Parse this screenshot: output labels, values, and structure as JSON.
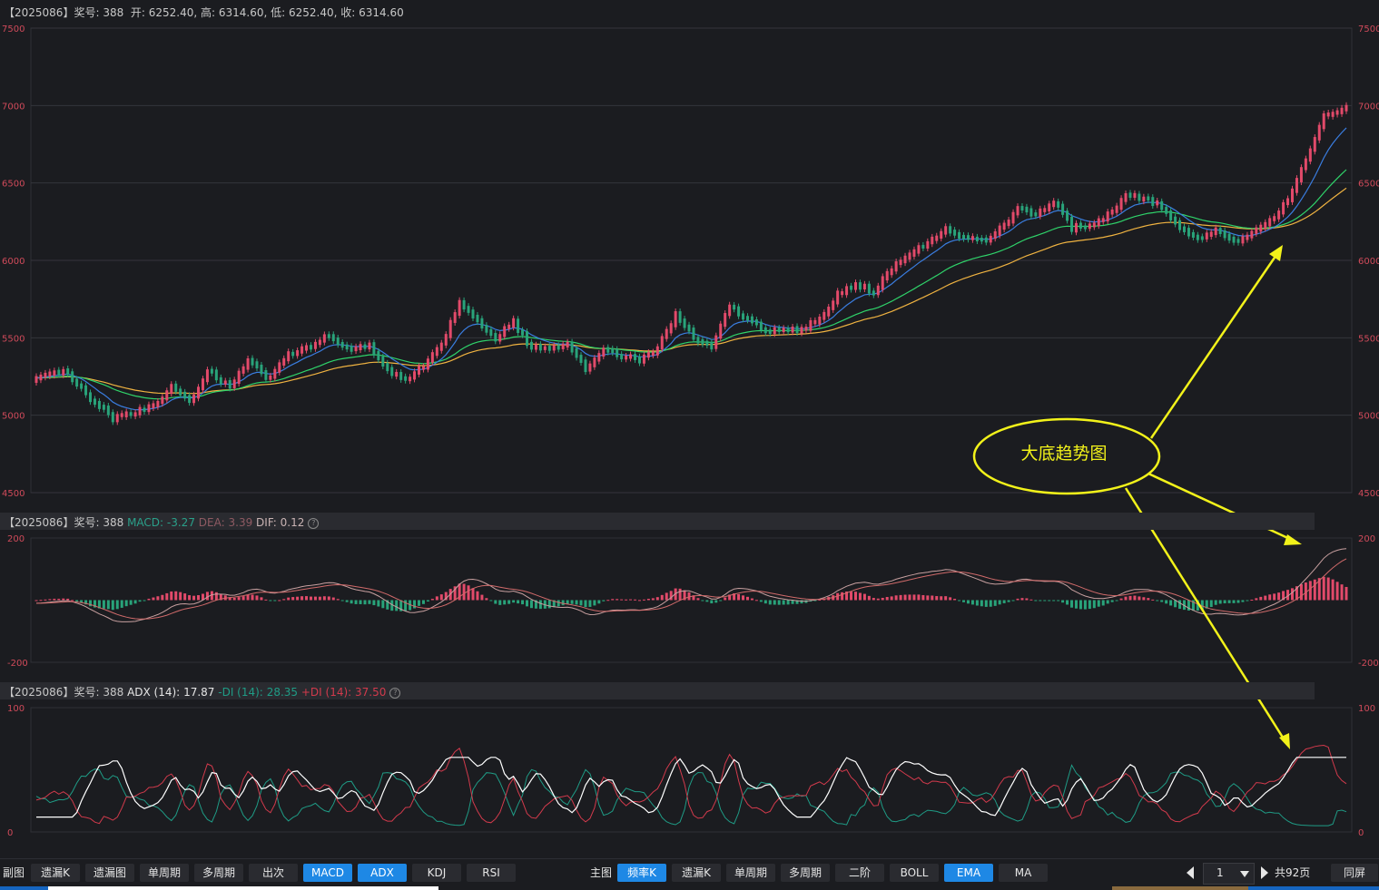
{
  "header_main": {
    "period": "【2025086】",
    "prize_label": "奖号:",
    "prize": "388",
    "open": "开: 6252.40,",
    "high": "高: 6314.60,",
    "low": "低: 6252.40,",
    "close": "收: 6314.60"
  },
  "header_macd": {
    "period": "【2025086】",
    "prize_label": "奖号:",
    "prize": "388",
    "macd_label": "MACD:",
    "macd": "-3.27",
    "dea_label": "DEA:",
    "dea": "3.39",
    "dif_label": "DIF:",
    "dif": "0.12"
  },
  "header_adx": {
    "period": "【2025086】",
    "prize_label": "奖号:",
    "prize": "388",
    "adx_label": "ADX (14):",
    "adx": "17.87",
    "mdi_label": "-DI (14):",
    "mdi": "28.35",
    "pdi_label": "+DI (14):",
    "pdi": "37.50"
  },
  "annotation": {
    "text": "大底趋势图"
  },
  "chart_data": [
    {
      "type": "candlestick",
      "ylim": [
        4500,
        7500
      ],
      "yticks": [
        "7500",
        "7000",
        "6500",
        "6000",
        "5500",
        "5000",
        "4500"
      ],
      "grid": true,
      "candles_count": 248,
      "trend_close": [
        [
          0,
          5230
        ],
        [
          6,
          5290
        ],
        [
          12,
          5110
        ],
        [
          17,
          4980
        ],
        [
          21,
          5010
        ],
        [
          26,
          5060
        ],
        [
          30,
          5180
        ],
        [
          34,
          5080
        ],
        [
          38,
          5290
        ],
        [
          43,
          5180
        ],
        [
          47,
          5350
        ],
        [
          52,
          5230
        ],
        [
          56,
          5400
        ],
        [
          61,
          5440
        ],
        [
          65,
          5520
        ],
        [
          70,
          5420
        ],
        [
          74,
          5450
        ],
        [
          78,
          5300
        ],
        [
          82,
          5220
        ],
        [
          86,
          5320
        ],
        [
          90,
          5460
        ],
        [
          94,
          5720
        ],
        [
          98,
          5610
        ],
        [
          102,
          5500
        ],
        [
          106,
          5600
        ],
        [
          110,
          5430
        ],
        [
          114,
          5430
        ],
        [
          118,
          5470
        ],
        [
          122,
          5300
        ],
        [
          126,
          5430
        ],
        [
          130,
          5380
        ],
        [
          134,
          5360
        ],
        [
          138,
          5430
        ],
        [
          142,
          5650
        ],
        [
          146,
          5500
        ],
        [
          150,
          5450
        ],
        [
          154,
          5700
        ],
        [
          158,
          5620
        ],
        [
          162,
          5550
        ],
        [
          166,
          5540
        ],
        [
          170,
          5560
        ],
        [
          174,
          5620
        ],
        [
          178,
          5780
        ],
        [
          182,
          5850
        ],
        [
          186,
          5800
        ],
        [
          190,
          5950
        ],
        [
          194,
          6050
        ],
        [
          198,
          6110
        ],
        [
          202,
          6200
        ],
        [
          206,
          6150
        ],
        [
          210,
          6120
        ],
        [
          214,
          6200
        ],
        [
          218,
          6330
        ],
        [
          222,
          6300
        ],
        [
          226,
          6380
        ],
        [
          230,
          6210
        ],
        [
          234,
          6230
        ],
        [
          238,
          6290
        ],
        [
          242,
          6420
        ],
        [
          246,
          6400
        ],
        [
          250,
          6350
        ],
        [
          254,
          6200
        ],
        [
          258,
          6130
        ],
        [
          262,
          6200
        ],
        [
          266,
          6120
        ],
        [
          270,
          6180
        ],
        [
          274,
          6250
        ],
        [
          278,
          6400
        ],
        [
          282,
          6640
        ],
        [
          286,
          6940
        ],
        [
          289,
          6960
        ],
        [
          291,
          7000
        ]
      ],
      "ema_fast_color": "#3a7de0",
      "ema_mid_color": "#2fd36a",
      "ema_slow_color": "#f0b341",
      "up_color": "#e24a6a",
      "down_color": "#29a37a"
    },
    {
      "type": "macd",
      "ylim": [
        -200,
        200
      ],
      "yticks": [
        "200",
        "-200"
      ],
      "dif_color": "#c8a0a0",
      "dea_color": "#d06a6a"
    },
    {
      "type": "adx",
      "ylim": [
        0,
        100
      ],
      "yticks": [
        "100",
        "0"
      ],
      "adx_color": "#ffffff",
      "mdi_color": "#1f9c86",
      "pdi_color": "#d23a4c"
    }
  ],
  "toolbar": {
    "sub_label": "副图",
    "sub_buttons": [
      "遗漏K",
      "遗漏图",
      "单周期",
      "多周期",
      "出次",
      "MACD",
      "ADX",
      "KDJ",
      "RSI"
    ],
    "sub_active": [
      false,
      false,
      false,
      false,
      false,
      true,
      true,
      false,
      false
    ],
    "main_label": "主图",
    "main_buttons": [
      "频率K",
      "遗漏K",
      "单周期",
      "多周期",
      "二阶",
      "BOLL",
      "EMA",
      "MA"
    ],
    "main_active": [
      true,
      false,
      false,
      false,
      false,
      false,
      true,
      false
    ],
    "page_value": "1",
    "page_total": "共92页",
    "fullscreen": "同屏"
  }
}
